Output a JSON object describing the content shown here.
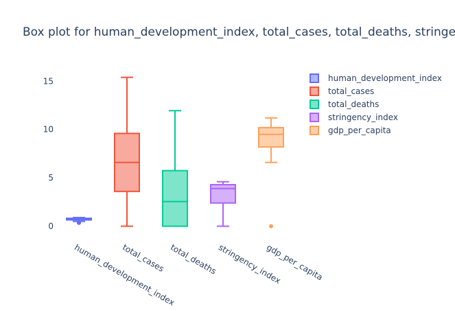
{
  "chart_data": {
    "type": "box",
    "title": "Box plot for human_development_index, total_cases, total_deaths, stringency_in",
    "ylim": [
      -1.1,
      16.3
    ],
    "yticks": [
      0,
      5,
      10,
      15
    ],
    "legend": "top-right",
    "series": [
      {
        "name": "human_development_index",
        "color": "#636efa",
        "min": 0.5,
        "q1": 0.65,
        "median": 0.75,
        "q3": 0.82,
        "max": 0.9,
        "outliers": [
          0.35
        ]
      },
      {
        "name": "total_cases",
        "color": "#EF553B",
        "min": 0,
        "q1": 3.6,
        "median": 6.6,
        "q3": 9.6,
        "max": 15.4,
        "outliers": []
      },
      {
        "name": "total_deaths",
        "color": "#00cc96",
        "min": 0,
        "q1": 0,
        "median": 2.55,
        "q3": 5.75,
        "max": 11.95,
        "outliers": []
      },
      {
        "name": "stringency_index",
        "color": "#ab63fa",
        "min": 0,
        "q1": 2.4,
        "median": 3.9,
        "q3": 4.3,
        "max": 4.6,
        "outliers": []
      },
      {
        "name": "gdp_per_capita",
        "color": "#FFA15A",
        "min": 6.6,
        "q1": 8.2,
        "median": 9.5,
        "q3": 10.2,
        "max": 11.2,
        "outliers": [
          0
        ]
      }
    ]
  }
}
